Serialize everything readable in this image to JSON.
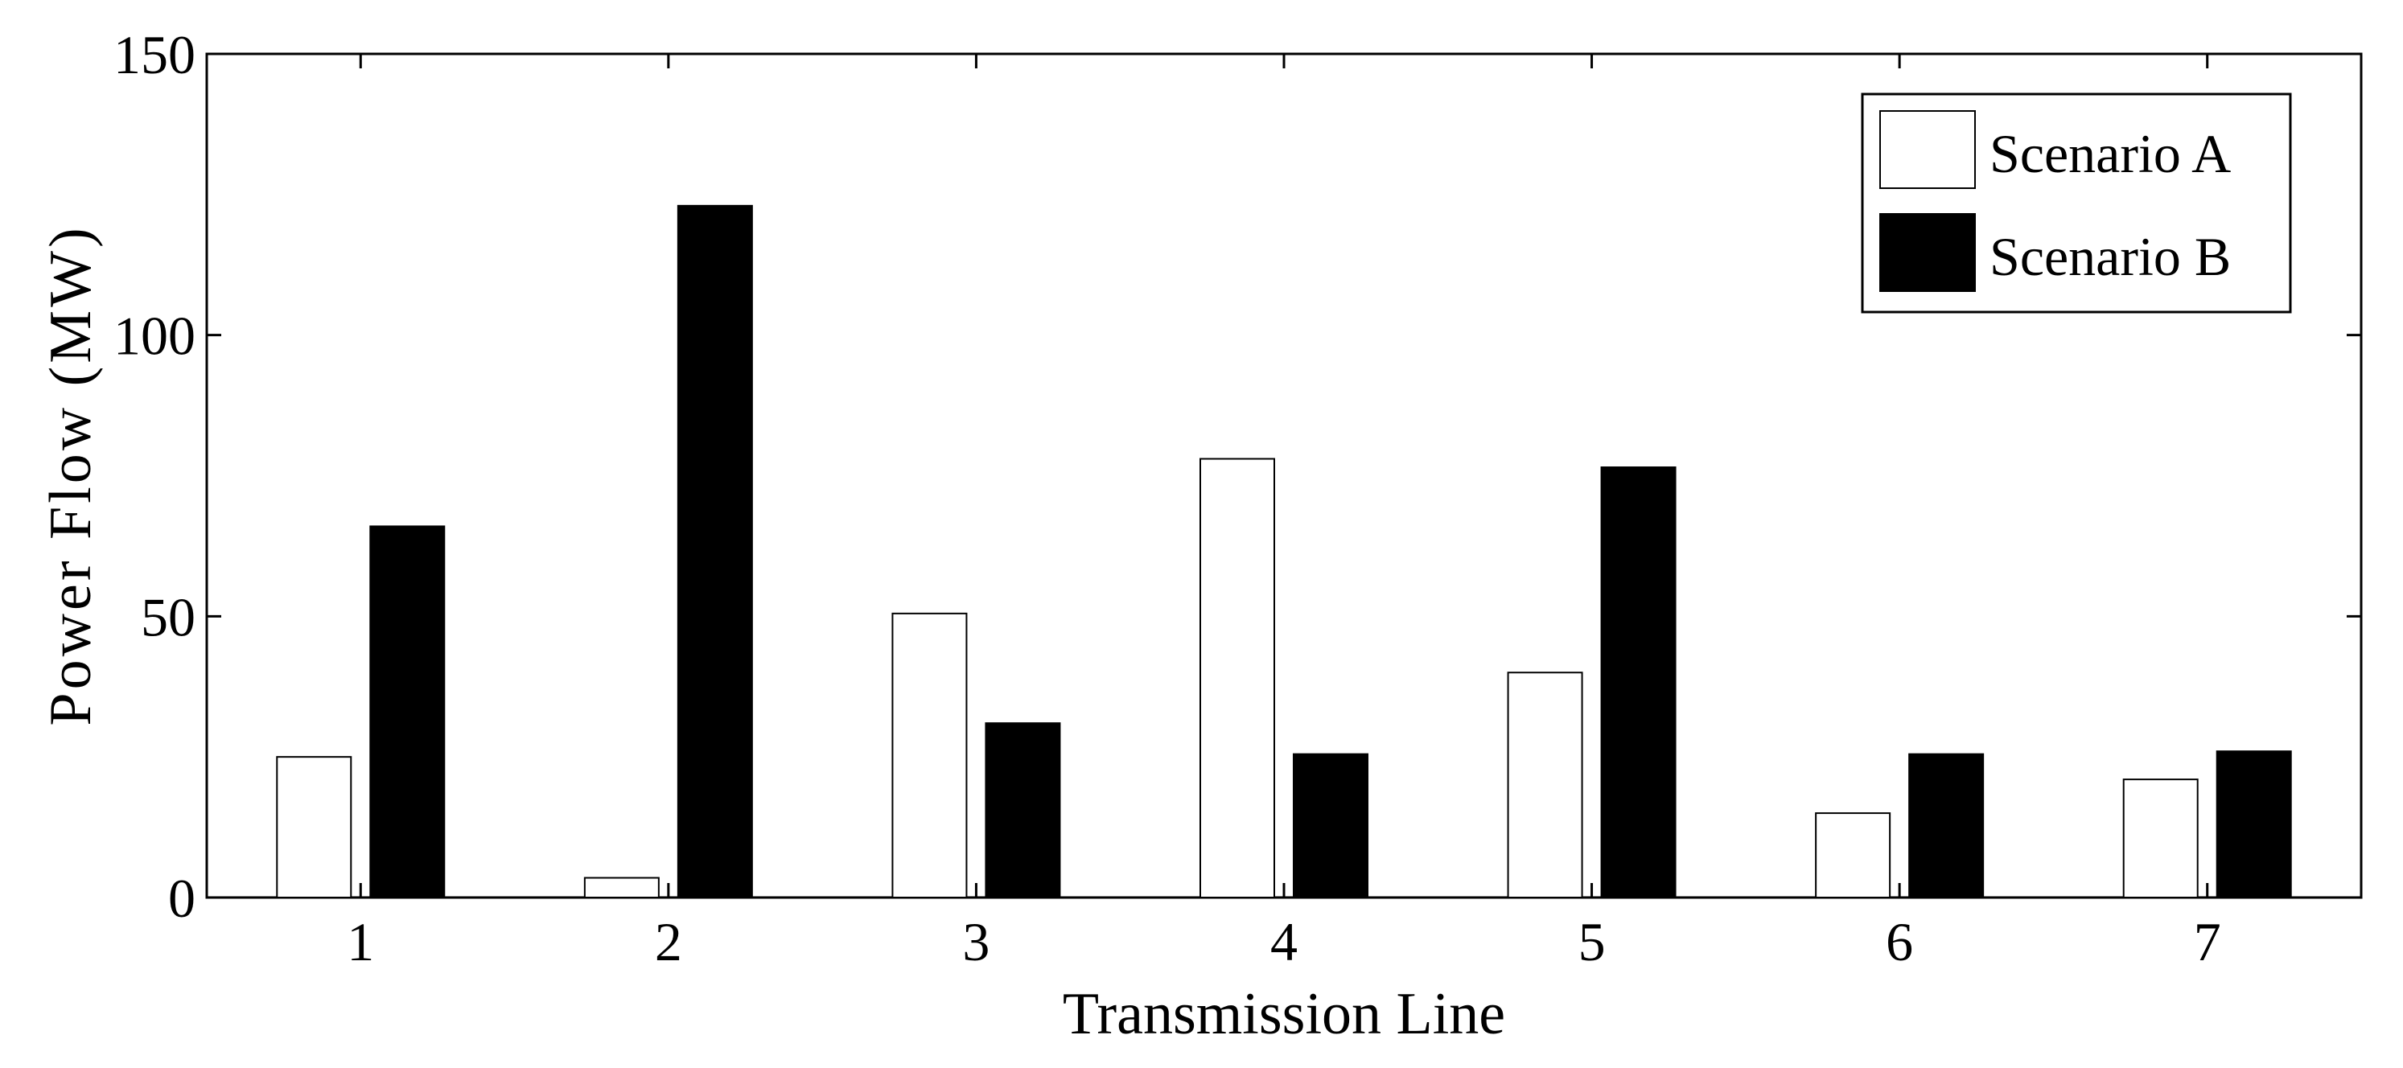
{
  "chart_data": {
    "type": "bar",
    "xlabel": "Transmission Line",
    "ylabel": "Power Flow (MW)",
    "categories": [
      "1",
      "2",
      "3",
      "4",
      "5",
      "6",
      "7"
    ],
    "ylim": [
      0,
      150
    ],
    "yticks": [
      0,
      50,
      100,
      150
    ],
    "grid": false,
    "legend_position": "top-right",
    "series": [
      {
        "name": "Scenario A",
        "color": "#ffffff",
        "edge_color": "#000000",
        "values": [
          25,
          3.5,
          50.5,
          78,
          40,
          15,
          21
        ]
      },
      {
        "name": "Scenario B",
        "color": "#000000",
        "edge_color": "#000000",
        "values": [
          66,
          123,
          31,
          25.5,
          76.5,
          25.5,
          26
        ]
      }
    ]
  }
}
